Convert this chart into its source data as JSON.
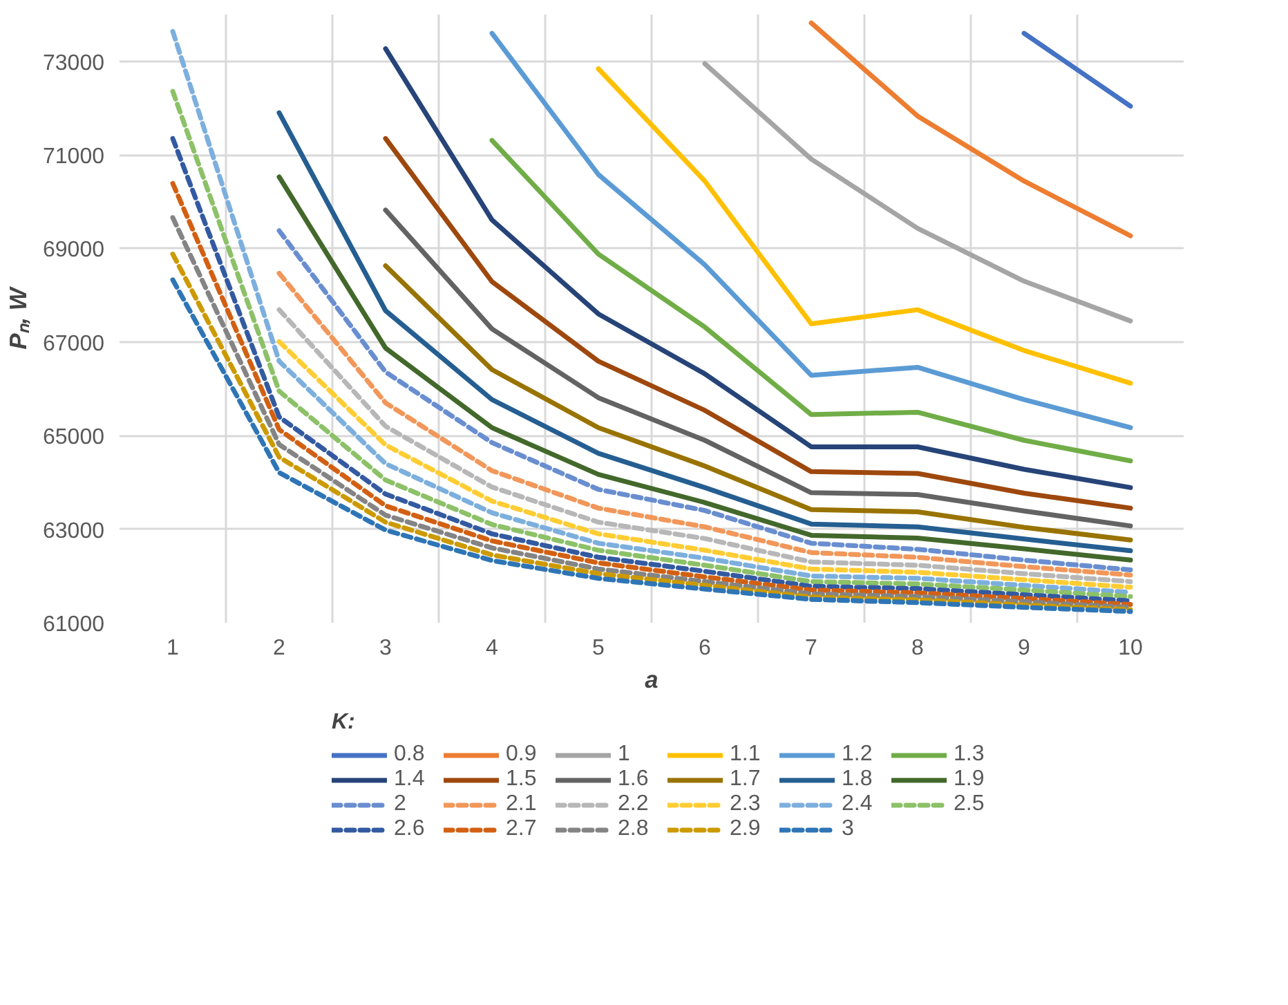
{
  "chart_data": {
    "type": "line",
    "xlabel": "a",
    "ylabel": "Pₙ, W",
    "legend_title": "K:",
    "categories": [
      "1",
      "2",
      "3",
      "4",
      "5",
      "6",
      "7",
      "8",
      "9",
      "10"
    ],
    "ylim": [
      61000,
      74000
    ],
    "yticks": [
      61000,
      63000,
      65000,
      67000,
      69000,
      71000,
      73000
    ],
    "grid": true,
    "legend": "bottom",
    "line_style": "solid",
    "series": [
      {
        "name": "0.8",
        "color": "#4472c4",
        "values": [
          null,
          null,
          null,
          null,
          null,
          null,
          null,
          null,
          73600,
          72040
        ]
      },
      {
        "name": "0.9",
        "color": "#ed7d31",
        "values": [
          null,
          null,
          null,
          null,
          null,
          null,
          73820,
          71830,
          70440,
          69270
        ]
      },
      {
        "name": "1",
        "color": "#a5a5a5",
        "values": [
          null,
          null,
          null,
          null,
          null,
          72950,
          70910,
          69430,
          68300,
          67450
        ]
      },
      {
        "name": "1.1",
        "color": "#ffc000",
        "values": [
          null,
          null,
          null,
          null,
          72840,
          70440,
          67390,
          67690,
          66820,
          66120
        ]
      },
      {
        "name": "1.2",
        "color": "#5b9bd5",
        "values": [
          null,
          null,
          null,
          73600,
          70580,
          68650,
          66290,
          66460,
          65770,
          65170
        ]
      },
      {
        "name": "1.3",
        "color": "#70ad47",
        "values": [
          null,
          null,
          null,
          71310,
          68880,
          67320,
          65450,
          65500,
          64900,
          64460
        ]
      },
      {
        "name": "1.4",
        "color": "#264478",
        "values": [
          null,
          null,
          73270,
          69610,
          67600,
          66320,
          64760,
          64760,
          64280,
          63890
        ]
      },
      {
        "name": "1.5",
        "color": "#9e480e",
        "values": [
          null,
          null,
          71350,
          68290,
          66590,
          65540,
          64230,
          64190,
          63770,
          63450
        ]
      },
      {
        "name": "1.6",
        "color": "#636363",
        "values": [
          null,
          null,
          69820,
          67280,
          65810,
          64900,
          63780,
          63740,
          63390,
          63070
        ]
      },
      {
        "name": "1.7",
        "color": "#997300",
        "values": [
          null,
          null,
          68630,
          66410,
          65170,
          64350,
          63420,
          63370,
          63040,
          62770
        ]
      },
      {
        "name": "1.8",
        "color": "#255e91",
        "values": [
          null,
          71900,
          67670,
          65770,
          64620,
          63890,
          63110,
          63050,
          62790,
          62540
        ]
      },
      {
        "name": "1.9",
        "color": "#43682b",
        "values": [
          null,
          70530,
          66870,
          65170,
          64170,
          63570,
          62870,
          62810,
          62580,
          62340
        ]
      },
      {
        "name": "2",
        "color": "#698ed0",
        "line_style": "dashed",
        "values": [
          null,
          69380,
          66360,
          64850,
          63850,
          63400,
          62700,
          62570,
          62340,
          62130
        ]
      },
      {
        "name": "2.1",
        "color": "#f1975a",
        "line_style": "dashed",
        "values": [
          null,
          68470,
          65700,
          64250,
          63450,
          63050,
          62500,
          62400,
          62200,
          62020
        ]
      },
      {
        "name": "2.2",
        "color": "#b7b7b7",
        "line_style": "dashed",
        "values": [
          null,
          67690,
          65200,
          63900,
          63150,
          62800,
          62300,
          62230,
          62050,
          61880
        ]
      },
      {
        "name": "2.3",
        "color": "#ffcd33",
        "line_style": "dashed",
        "values": [
          null,
          67010,
          64800,
          63600,
          62900,
          62550,
          62150,
          62080,
          61920,
          61760
        ]
      },
      {
        "name": "2.4",
        "color": "#7cafdd",
        "line_style": "dashed",
        "values": [
          73640,
          66590,
          64400,
          63350,
          62700,
          62380,
          62000,
          61950,
          61800,
          61650
        ]
      },
      {
        "name": "2.5",
        "color": "#8cc168",
        "line_style": "dashed",
        "values": [
          72360,
          65950,
          64050,
          63100,
          62550,
          62230,
          61880,
          61830,
          61700,
          61560
        ]
      },
      {
        "name": "2.6",
        "color": "#335aa1",
        "line_style": "dashed",
        "values": [
          71350,
          65400,
          63750,
          62900,
          62400,
          62100,
          61780,
          61730,
          61600,
          61470
        ]
      },
      {
        "name": "2.7",
        "color": "#d26012",
        "line_style": "dashed",
        "values": [
          70390,
          65130,
          63500,
          62750,
          62280,
          61980,
          61700,
          61640,
          61520,
          61390
        ]
      },
      {
        "name": "2.8",
        "color": "#848484",
        "line_style": "dashed",
        "values": [
          69660,
          64810,
          63300,
          62600,
          62150,
          61880,
          61620,
          61560,
          61450,
          61330
        ]
      },
      {
        "name": "2.9",
        "color": "#cc9a00",
        "line_style": "dashed",
        "values": [
          68880,
          64540,
          63150,
          62450,
          62050,
          61800,
          61550,
          61490,
          61380,
          61280
        ]
      },
      {
        "name": "3",
        "color": "#2e75b6",
        "line_style": "dashed",
        "values": [
          68330,
          64210,
          62980,
          62330,
          61950,
          61720,
          61500,
          61430,
          61330,
          61240
        ]
      }
    ]
  }
}
